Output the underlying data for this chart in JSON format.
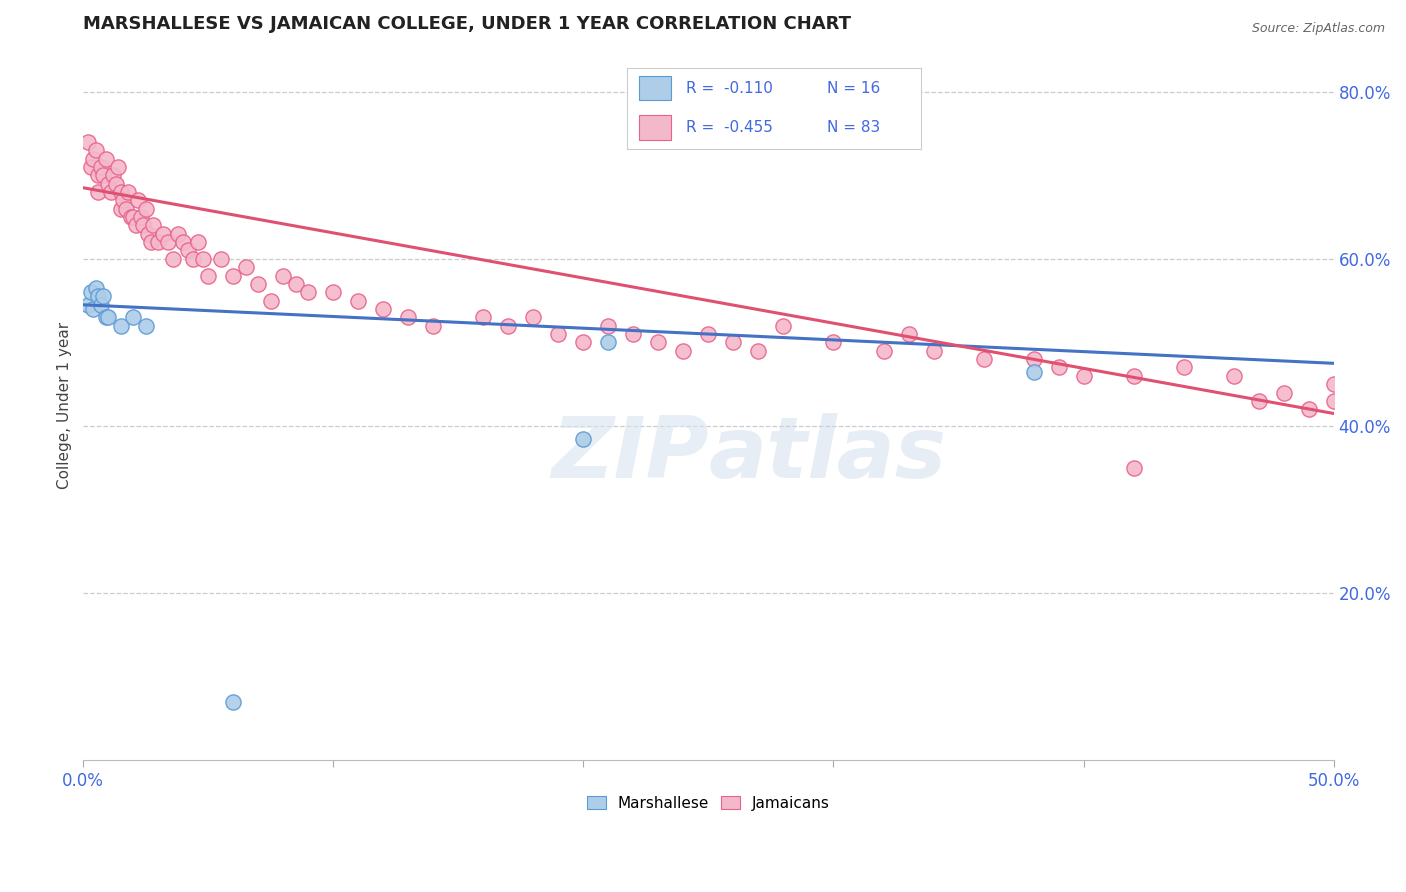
{
  "title": "MARSHALLESE VS JAMAICAN COLLEGE, UNDER 1 YEAR CORRELATION CHART",
  "source_text": "Source: ZipAtlas.com",
  "ylabel": "College, Under 1 year",
  "x_min": 0.0,
  "x_max": 0.5,
  "y_min": 0.0,
  "y_max": 0.85,
  "y_tick_labels_right": [
    "20.0%",
    "40.0%",
    "60.0%",
    "80.0%"
  ],
  "y_tick_values_right": [
    0.2,
    0.4,
    0.6,
    0.8
  ],
  "legend_r_blue": "R =  -0.110",
  "legend_n_blue": "N = 16",
  "legend_r_pink": "R =  -0.455",
  "legend_n_pink": "N = 83",
  "blue_fill": "#aecde8",
  "blue_edge": "#5b9bd5",
  "pink_fill": "#f4b8cb",
  "pink_edge": "#e8638a",
  "blue_line_color": "#4472c4",
  "pink_line_color": "#e05070",
  "text_color": "#4169e1",
  "watermark_color": "#d8e4f0",
  "grid_color": "#cccccc",
  "background_color": "#ffffff",
  "blue_scatter_x": [
    0.002,
    0.003,
    0.004,
    0.005,
    0.006,
    0.007,
    0.008,
    0.009,
    0.01,
    0.015,
    0.02,
    0.025,
    0.2,
    0.21,
    0.38,
    0.06
  ],
  "blue_scatter_y": [
    0.545,
    0.56,
    0.54,
    0.565,
    0.555,
    0.545,
    0.555,
    0.53,
    0.53,
    0.52,
    0.53,
    0.52,
    0.385,
    0.5,
    0.465,
    0.07
  ],
  "pink_scatter_x": [
    0.002,
    0.003,
    0.004,
    0.005,
    0.006,
    0.006,
    0.007,
    0.008,
    0.009,
    0.01,
    0.011,
    0.012,
    0.013,
    0.014,
    0.015,
    0.015,
    0.016,
    0.017,
    0.018,
    0.019,
    0.02,
    0.021,
    0.022,
    0.023,
    0.024,
    0.025,
    0.026,
    0.027,
    0.028,
    0.03,
    0.032,
    0.034,
    0.036,
    0.038,
    0.04,
    0.042,
    0.044,
    0.046,
    0.048,
    0.05,
    0.055,
    0.06,
    0.065,
    0.07,
    0.075,
    0.08,
    0.085,
    0.09,
    0.1,
    0.11,
    0.12,
    0.13,
    0.14,
    0.16,
    0.17,
    0.18,
    0.19,
    0.2,
    0.21,
    0.22,
    0.23,
    0.24,
    0.25,
    0.26,
    0.27,
    0.28,
    0.3,
    0.32,
    0.33,
    0.34,
    0.36,
    0.38,
    0.39,
    0.4,
    0.42,
    0.44,
    0.46,
    0.47,
    0.48,
    0.49,
    0.5,
    0.42,
    0.5
  ],
  "pink_scatter_y": [
    0.74,
    0.71,
    0.72,
    0.73,
    0.7,
    0.68,
    0.71,
    0.7,
    0.72,
    0.69,
    0.68,
    0.7,
    0.69,
    0.71,
    0.68,
    0.66,
    0.67,
    0.66,
    0.68,
    0.65,
    0.65,
    0.64,
    0.67,
    0.65,
    0.64,
    0.66,
    0.63,
    0.62,
    0.64,
    0.62,
    0.63,
    0.62,
    0.6,
    0.63,
    0.62,
    0.61,
    0.6,
    0.62,
    0.6,
    0.58,
    0.6,
    0.58,
    0.59,
    0.57,
    0.55,
    0.58,
    0.57,
    0.56,
    0.56,
    0.55,
    0.54,
    0.53,
    0.52,
    0.53,
    0.52,
    0.53,
    0.51,
    0.5,
    0.52,
    0.51,
    0.5,
    0.49,
    0.51,
    0.5,
    0.49,
    0.52,
    0.5,
    0.49,
    0.51,
    0.49,
    0.48,
    0.48,
    0.47,
    0.46,
    0.46,
    0.47,
    0.46,
    0.43,
    0.44,
    0.42,
    0.45,
    0.35,
    0.43
  ],
  "blue_trend_x": [
    0.0,
    0.5
  ],
  "blue_trend_y": [
    0.545,
    0.475
  ],
  "pink_trend_x": [
    0.0,
    0.5
  ],
  "pink_trend_y": [
    0.685,
    0.415
  ]
}
